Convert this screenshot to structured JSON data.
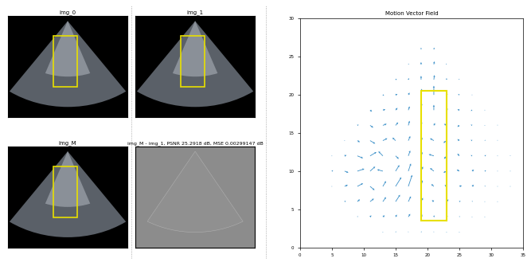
{
  "images": [
    {
      "title": "img_0"
    },
    {
      "title": "img_1"
    },
    {
      "title": "img_M"
    }
  ],
  "difference_image": {
    "title": "img_M - img_1, PSNR 25.2918 dB, MSE 0.00299147 dB"
  },
  "chart_data": {
    "type": "quiver",
    "title": "Motion Vector Field",
    "color": "#3a8fc8",
    "xlim": [
      0,
      35
    ],
    "ylim": [
      0,
      30
    ],
    "xticks": [
      0,
      5,
      10,
      15,
      20,
      25,
      30,
      35
    ],
    "yticks": [
      0,
      5,
      10,
      15,
      20,
      25,
      30
    ],
    "highlight_box": {
      "x": [
        19,
        23
      ],
      "y": [
        3.5,
        20.5
      ],
      "color": "#e8e000"
    },
    "vectors": [
      {
        "y": 26,
        "x": [
          19,
          21
        ],
        "u": [
          0,
          0.1
        ],
        "v": [
          0.2,
          0.2
        ]
      },
      {
        "y": 24,
        "x": [
          17,
          19,
          21,
          23
        ],
        "u": [
          0.1,
          0,
          0.1,
          -0.1
        ],
        "v": [
          0.1,
          0.3,
          0.4,
          0.1
        ]
      },
      {
        "y": 22,
        "x": [
          15,
          17,
          19,
          21,
          23,
          25
        ],
        "u": [
          0.2,
          0.1,
          0,
          0.1,
          0,
          -0.1
        ],
        "v": [
          0.1,
          0.2,
          0.5,
          0.6,
          0.2,
          0.1
        ]
      },
      {
        "y": 20,
        "x": [
          13,
          15,
          17,
          19,
          21,
          23,
          25,
          27
        ],
        "u": [
          0.2,
          0.3,
          0.2,
          0.1,
          0,
          0.1,
          -0.2,
          -0.1
        ],
        "v": [
          -0.1,
          0.1,
          0.3,
          0.8,
          1.2,
          0.3,
          0.1,
          0
        ]
      },
      {
        "y": 18,
        "x": [
          11,
          13,
          15,
          17,
          19,
          21,
          23,
          25,
          27,
          29
        ],
        "u": [
          0.3,
          0.4,
          0.3,
          0.2,
          0.1,
          0,
          0.2,
          -0.3,
          -0.2,
          -0.1
        ],
        "v": [
          -0.2,
          0.1,
          0.3,
          0.5,
          0.9,
          0.7,
          0.2,
          0.1,
          -0.1,
          0
        ]
      },
      {
        "y": 16,
        "x": [
          9,
          11,
          13,
          15,
          17,
          19,
          21,
          23,
          25,
          27,
          29,
          31
        ],
        "u": [
          0.2,
          0.5,
          0.6,
          0.4,
          0.2,
          0.1,
          0.2,
          -0.4,
          -0.3,
          -0.2,
          -0.1,
          0
        ],
        "v": [
          0.1,
          -0.3,
          0.2,
          0.4,
          0.6,
          0.5,
          0.3,
          0.2,
          -0.2,
          0.1,
          0,
          0.1
        ]
      },
      {
        "y": 14,
        "x": [
          7,
          9,
          11,
          13,
          15,
          17,
          19,
          21,
          23,
          25,
          27,
          29,
          31
        ],
        "u": [
          0.1,
          0.4,
          0.8,
          0.7,
          -0.5,
          0.3,
          0.2,
          -0.6,
          -0.5,
          -0.3,
          -0.2,
          0.1,
          0
        ],
        "v": [
          0,
          -0.2,
          -0.4,
          0.3,
          0.4,
          0.6,
          0.4,
          0.3,
          -0.3,
          0.2,
          0.1,
          0.1,
          0.1
        ]
      },
      {
        "y": 12,
        "x": [
          5,
          7,
          9,
          11,
          13,
          15,
          17,
          19,
          21,
          23,
          25,
          27,
          29,
          31,
          33
        ],
        "u": [
          0.1,
          0.3,
          0.9,
          1.0,
          -0.7,
          0.5,
          0.3,
          0.2,
          -0.8,
          -0.4,
          -0.3,
          -0.2,
          0.2,
          0.1,
          0
        ],
        "v": [
          0,
          0.1,
          -0.3,
          0.5,
          0.6,
          -0.4,
          0.7,
          0.5,
          0.2,
          -0.4,
          0.3,
          0.1,
          0.1,
          0,
          0.1
        ]
      },
      {
        "y": 10,
        "x": [
          5,
          7,
          9,
          11,
          13,
          15,
          17,
          19,
          21,
          23,
          25,
          27,
          29,
          31,
          33
        ],
        "u": [
          0.2,
          0.6,
          1.1,
          0.8,
          -0.9,
          0.6,
          0.4,
          0.3,
          -0.6,
          -0.5,
          -0.4,
          0.3,
          0.2,
          0.1,
          0
        ],
        "v": [
          0.1,
          -0.2,
          0.3,
          0.6,
          0.2,
          0.8,
          1.0,
          0.6,
          0.4,
          -0.2,
          0.2,
          0.2,
          0.1,
          0,
          0
        ]
      },
      {
        "y": 8,
        "x": [
          5,
          7,
          9,
          11,
          13,
          15,
          17,
          19,
          21,
          23,
          25,
          27,
          29,
          31,
          33
        ],
        "u": [
          0.1,
          0.5,
          0.9,
          0.7,
          0.5,
          0.9,
          0.6,
          0.2,
          -0.4,
          -0.3,
          0.4,
          0.3,
          0.1,
          0.1,
          0
        ],
        "v": [
          0,
          0.2,
          0.4,
          -0.5,
          0.7,
          1.2,
          1.5,
          0.8,
          0.3,
          0.2,
          0.1,
          0.2,
          0.1,
          0,
          0
        ]
      },
      {
        "y": 6,
        "x": [
          7,
          9,
          11,
          13,
          15,
          17,
          19,
          21,
          23,
          25,
          27,
          29,
          31
        ],
        "u": [
          0.2,
          0.4,
          0.6,
          0.5,
          0.7,
          0.4,
          0.3,
          -0.3,
          0.3,
          0.2,
          0.1,
          0.1,
          0
        ],
        "v": [
          0.1,
          0.3,
          0.4,
          0.6,
          0.9,
          0.7,
          0.5,
          0.2,
          0.3,
          0.1,
          0.1,
          0,
          0
        ]
      },
      {
        "y": 4,
        "x": [
          9,
          11,
          13,
          15,
          17,
          19,
          21,
          23,
          25,
          27,
          29
        ],
        "u": [
          0.1,
          0.2,
          0.3,
          0.2,
          0.3,
          0.2,
          0.1,
          0.2,
          0.1,
          0.1,
          0
        ],
        "v": [
          0.1,
          0.2,
          0.2,
          0.3,
          0.4,
          0.3,
          0.2,
          0.1,
          0.1,
          0,
          0
        ]
      },
      {
        "y": 2,
        "x": [
          13,
          15,
          17,
          19,
          21,
          23,
          25
        ],
        "u": [
          0.1,
          0.1,
          0,
          0.1,
          0,
          0.1,
          0
        ],
        "v": [
          0,
          0.1,
          0.1,
          0.1,
          0.1,
          0,
          0
        ]
      }
    ]
  }
}
